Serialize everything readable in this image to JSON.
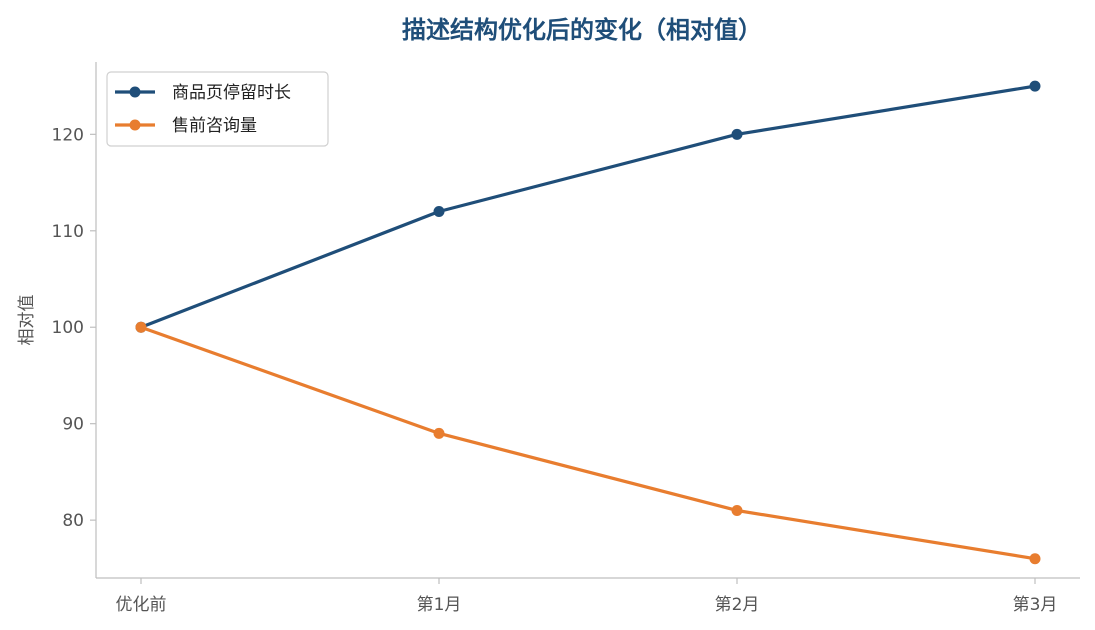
{
  "chart_data": {
    "type": "line",
    "title": "描述结构优化后的变化（相对值）",
    "xlabel": "",
    "ylabel": "相对值",
    "categories": [
      "优化前",
      "第1月",
      "第2月",
      "第3月"
    ],
    "series": [
      {
        "name": "商品页停留时长",
        "values": [
          100,
          112,
          120,
          125
        ],
        "color": "#1f4e79"
      },
      {
        "name": "售前咨询量",
        "values": [
          100,
          89,
          81,
          76
        ],
        "color": "#e87d2f"
      }
    ],
    "ylim": [
      74,
      127.5
    ],
    "yticks": [
      80,
      90,
      100,
      110,
      120
    ],
    "grid": false,
    "legend_position": "top-left"
  }
}
